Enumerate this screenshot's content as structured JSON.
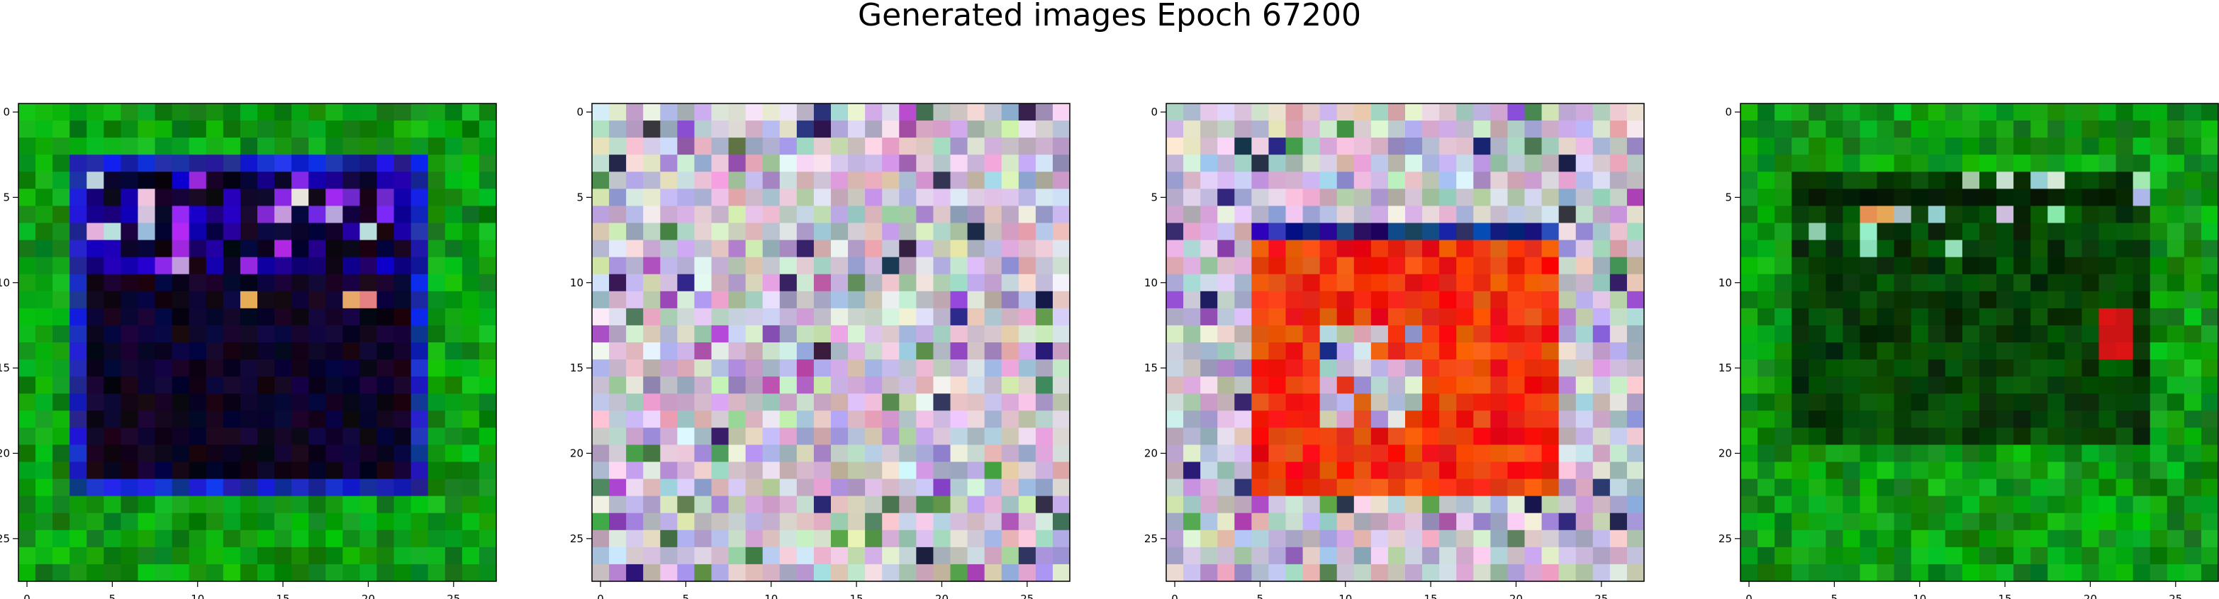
{
  "figure": {
    "title": "Generated images Epoch 67200"
  },
  "chart_data": {
    "type": "heatmap",
    "title": "Generated images Epoch 67200",
    "grid": false,
    "panels": [
      {
        "id": "sample-1",
        "rows": 28,
        "cols": 28,
        "palette": "green-frame-dark-center",
        "xlim": [
          0,
          27
        ],
        "ylim": [
          27,
          0
        ],
        "xticks": [
          "0",
          "5",
          "10",
          "15",
          "20",
          "25"
        ],
        "yticks": [
          "0",
          "5",
          "10",
          "15",
          "20",
          "25"
        ]
      },
      {
        "id": "sample-2",
        "rows": 28,
        "cols": 28,
        "palette": "pastel-noise",
        "xlim": [
          0,
          27
        ],
        "ylim": [
          27,
          0
        ],
        "xticks": [
          "0",
          "5",
          "10",
          "15",
          "20",
          "25"
        ],
        "yticks": [
          "0",
          "5",
          "10",
          "15",
          "20",
          "25"
        ]
      },
      {
        "id": "sample-3",
        "rows": 28,
        "cols": 28,
        "palette": "pastel-frame-red-center",
        "xlim": [
          0,
          27
        ],
        "ylim": [
          27,
          0
        ],
        "xticks": [
          "0",
          "5",
          "10",
          "15",
          "20",
          "25"
        ],
        "yticks": [
          "0",
          "5",
          "10",
          "15",
          "20",
          "25"
        ]
      },
      {
        "id": "sample-4",
        "rows": 28,
        "cols": 28,
        "palette": "green-dark-center",
        "xlim": [
          0,
          27
        ],
        "ylim": [
          27,
          0
        ],
        "xticks": [
          "0",
          "5",
          "10",
          "15",
          "20",
          "25"
        ],
        "yticks": [
          "0",
          "5",
          "10",
          "15",
          "20",
          "25"
        ]
      }
    ]
  }
}
